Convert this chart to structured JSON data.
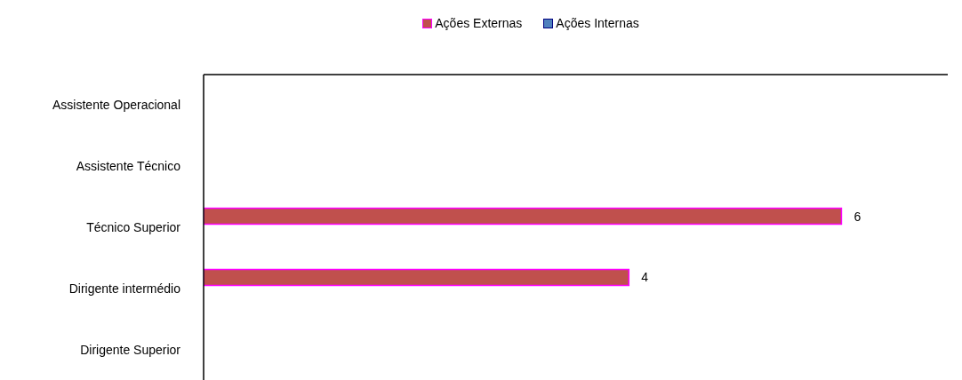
{
  "chart_data": {
    "type": "bar",
    "orientation": "horizontal",
    "categories": [
      "Assistente Operacional",
      "Assistente Técnico",
      "Técnico Superior",
      "Dirigente intermédio",
      "Dirigente Superior"
    ],
    "series": [
      {
        "name": "Ações Externas",
        "color": "#c0504d",
        "values": [
          null,
          null,
          6,
          4,
          null
        ]
      },
      {
        "name": "Ações Internas",
        "color": "#4f81bd",
        "values": [
          null,
          null,
          null,
          null,
          null
        ]
      }
    ],
    "xlim": [
      0,
      7
    ],
    "tick_labels": "y",
    "data_labels": true,
    "legend": "top",
    "grid": false
  }
}
